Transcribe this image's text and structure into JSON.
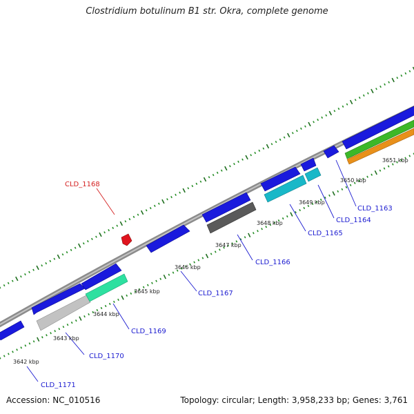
{
  "title": "Clostridium botulinum B1 str. Okra, complete genome",
  "footer": {
    "accession": "Accession: NC_010516",
    "summary": "Topology: circular; Length: 3,958,233 bp; Genes: 3,761"
  },
  "ticks": [
    "3642 kbp",
    "3643 kbp",
    "3644 kbp",
    "3645 kbp",
    "3646 kbp",
    "3647 kbp",
    "3648 kbp",
    "3649 kbp",
    "3650 kbp",
    "3651 kbp"
  ],
  "genes": [
    {
      "id": "CLD_1163",
      "color": "#1a1add"
    },
    {
      "id": "CLD_1164",
      "color": "#1a1add"
    },
    {
      "id": "CLD_1165",
      "color": "#1a1add"
    },
    {
      "id": "CLD_1166",
      "color": "#1a1add"
    },
    {
      "id": "CLD_1167",
      "color": "#1a1add"
    },
    {
      "id": "CLD_1168",
      "color": "#dd1a1a"
    },
    {
      "id": "CLD_1169",
      "color": "#1a1add"
    },
    {
      "id": "CLD_1170",
      "color": "#1a1add"
    },
    {
      "id": "CLD_1171",
      "color": "#1a1add"
    }
  ],
  "colors": {
    "backbone": "#8c8c8c",
    "cds": "#1a1add",
    "gene_marker": "#e0141e",
    "tick_minor": "#228b22",
    "tick_major": "#1e6e1e",
    "cyan_feature": "#19b8c8",
    "mint_feature": "#2ee0a0",
    "gray_feature": "#5a5a5a",
    "light_gray_feature": "#bdbdbd",
    "green_feature": "#3cb828",
    "orange_feature": "#e8901a"
  }
}
